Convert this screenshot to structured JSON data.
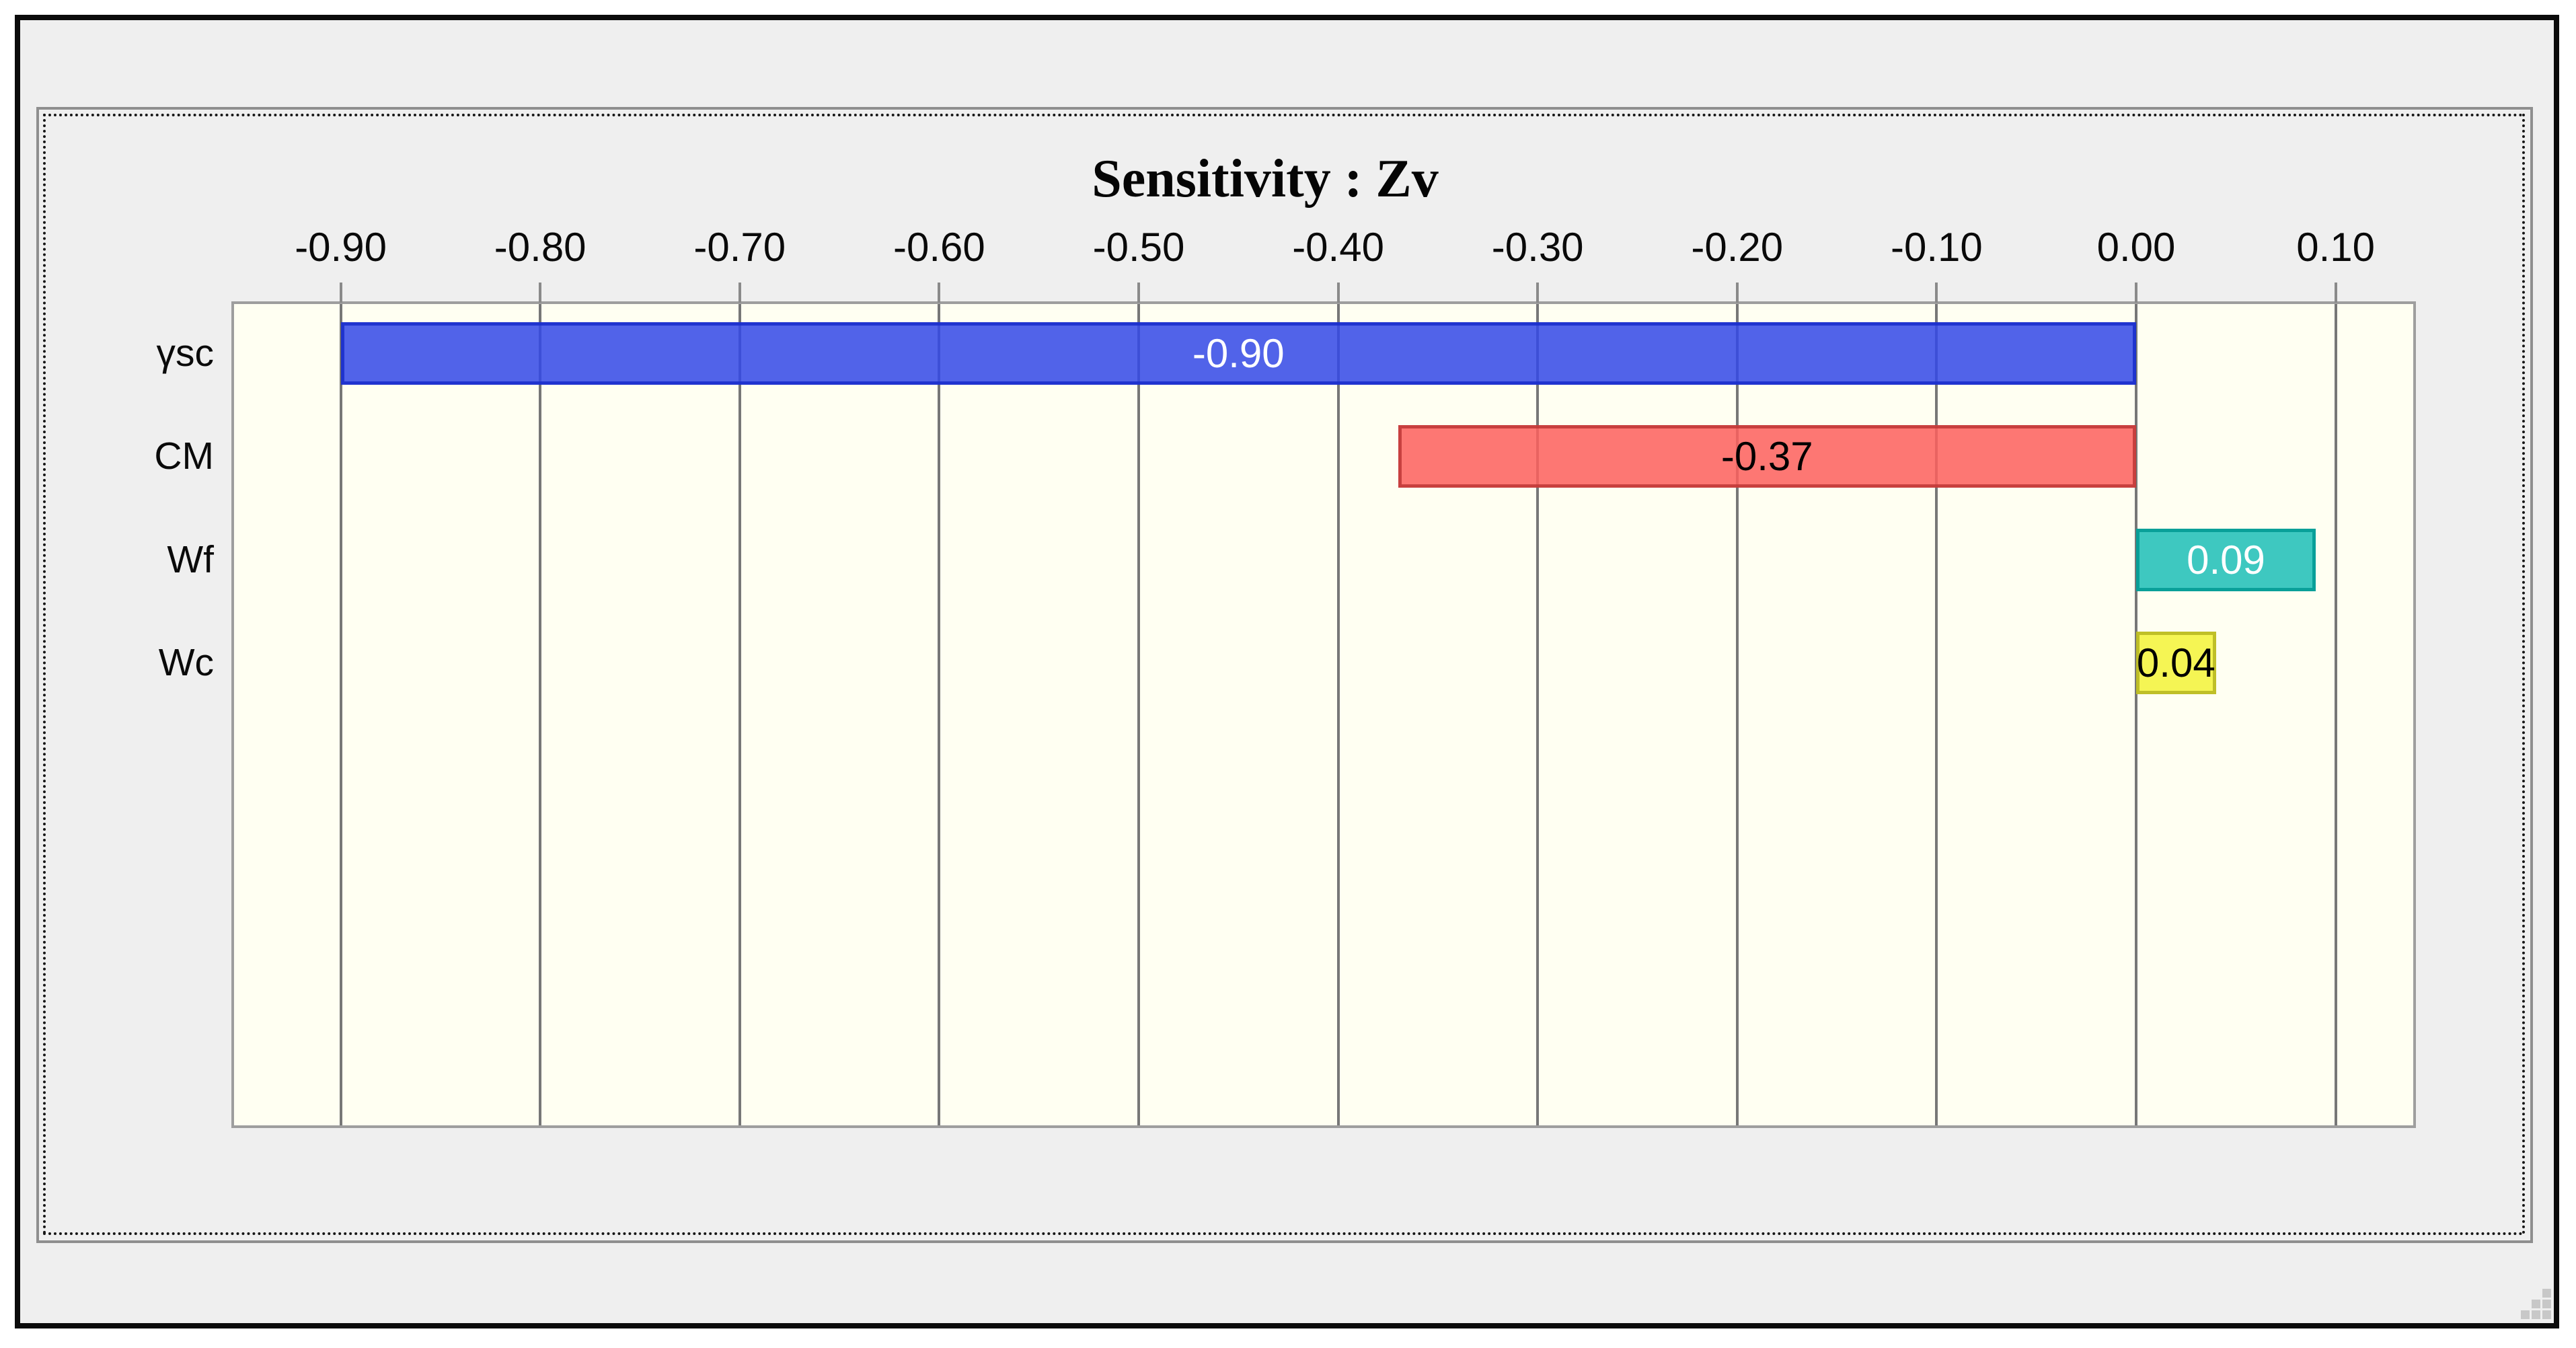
{
  "window": {
    "frame_color": "#0b0b0b",
    "inner_background": "#efefef",
    "page_background": "#ffffff"
  },
  "panel": {
    "border_color": "#8f8f8f",
    "dotted_border_color": "#161616",
    "background": "#efefef"
  },
  "icons": {
    "resize_grip": "resize-grip"
  },
  "chart_data": {
    "type": "bar",
    "orientation": "horizontal",
    "title": "Sensitivity : Zv",
    "categories": [
      "γsc",
      "CM",
      "Wf",
      "Wc"
    ],
    "values": [
      -0.9,
      -0.37,
      0.09,
      0.04
    ],
    "value_labels": [
      "-0.90",
      "-0.37",
      "0.09",
      "0.04"
    ],
    "bar_fill_colors_hex": [
      "#5163e8",
      "#fd7773",
      "#3ec8c0",
      "#f5f554"
    ],
    "bar_border_colors_hex": [
      "#3a4bd0",
      "#c85452",
      "#1fa8a0",
      "#c0c040"
    ],
    "bar_fill_rgba": [
      "rgba(50,72,231,0.85)",
      "rgba(253,95,93,0.85)",
      "rgba(28,190,183,0.85)",
      "rgba(243,243,56,0.85)"
    ],
    "bar_border_rgba": [
      "rgba(23,43,202,0.85)",
      "rgba(190,54,54,0.85)",
      "rgba(0,153,146,0.85)",
      "rgba(181,181,33,0.85)"
    ],
    "value_label_colors": [
      "#ffffff",
      "#000000",
      "#ffffff",
      "#000000"
    ],
    "x_ticks": [
      -0.9,
      -0.8,
      -0.7,
      -0.6,
      -0.5,
      -0.4,
      -0.3,
      -0.2,
      -0.1,
      0.0,
      0.1
    ],
    "x_tick_labels": [
      "-0.90",
      "-0.80",
      "-0.70",
      "-0.60",
      "-0.50",
      "-0.40",
      "-0.30",
      "-0.20",
      "-0.10",
      "0.00",
      "0.10"
    ],
    "xlim": [
      -0.955,
      0.14
    ],
    "grid": true,
    "plot_background": "#fffff2",
    "gridline_color": "#777777",
    "tick_color": "#8a8a8a",
    "axis_text_color": "#0a0a0a",
    "legend": "none"
  }
}
